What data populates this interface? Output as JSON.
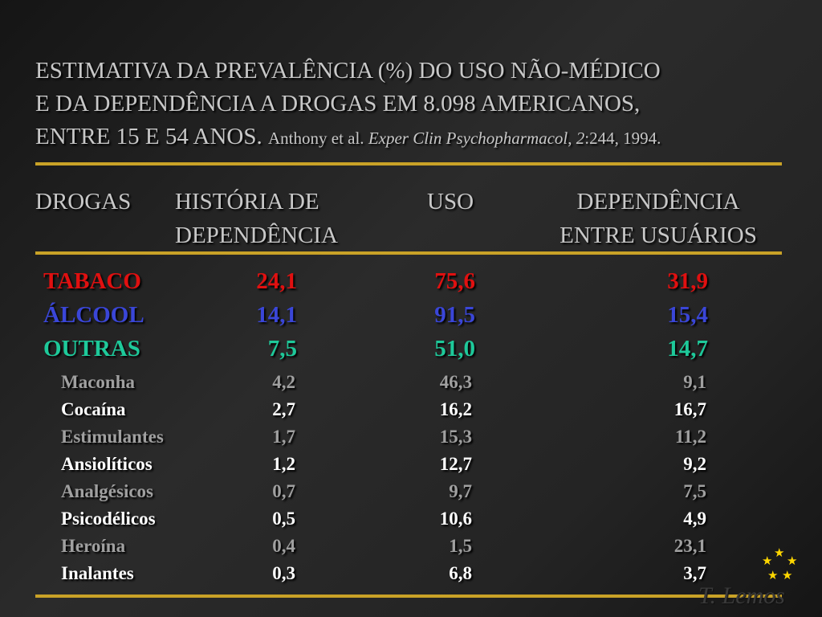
{
  "title": {
    "line1": "ESTIMATIVA DA PREVALÊNCIA (%) DO USO NÃO-MÉDICO",
    "line2": "E DA DEPENDÊNCIA A DROGAS EM 8.098 AMERICANOS,",
    "line3": "ENTRE 15 E 54 ANOS.",
    "citation_authors": "Anthony et al.",
    "citation_journal": "Exper Clin Psychopharmacol",
    "citation_volume": "2",
    "citation_pages": ":244, 1994."
  },
  "headers": {
    "drugs": "DROGAS",
    "history_l1": "HISTÓRIA DE",
    "history_l2": "DEPENDÊNCIA",
    "use": "USO",
    "dep_l1": "DEPENDÊNCIA",
    "dep_l2": "ENTRE USUÁRIOS"
  },
  "main_rows": [
    {
      "name": "TABACO",
      "history": "24,1",
      "use": "75,6",
      "dependence": "31,9",
      "color": "#e01010"
    },
    {
      "name": "ÁLCOOL",
      "history": "14,1",
      "use": "91,5",
      "dependence": "15,4",
      "color": "#3a46d8"
    },
    {
      "name": "OUTRAS",
      "history": "7,5",
      "use": "51,0",
      "dependence": "14,7",
      "color": "#1ec99a"
    }
  ],
  "sub_rows": [
    {
      "name": "Maconha",
      "history": "4,2",
      "use": "46,3",
      "dependence": "9,1",
      "color": "#a0a0a0"
    },
    {
      "name": "Cocaína",
      "history": "2,7",
      "use": "16,2",
      "dependence": "16,7",
      "color": "#ffffff"
    },
    {
      "name": "Estimulantes",
      "history": "1,7",
      "use": "15,3",
      "dependence": "11,2",
      "color": "#a0a0a0"
    },
    {
      "name": "Ansiolíticos",
      "history": "1,2",
      "use": "12,7",
      "dependence": "9,2",
      "color": "#ffffff"
    },
    {
      "name": "Analgésicos",
      "history": "0,7",
      "use": "9,7",
      "dependence": "7,5",
      "color": "#a0a0a0"
    },
    {
      "name": "Psicodélicos",
      "history": "0,5",
      "use": "10,6",
      "dependence": "4,9",
      "color": "#ffffff"
    },
    {
      "name": "Heroína",
      "history": "0,4",
      "use": "1,5",
      "dependence": "23,1",
      "color": "#a0a0a0"
    },
    {
      "name": "Inalantes",
      "history": "0,3",
      "use": "6,8",
      "dependence": "3,7",
      "color": "#ffffff"
    }
  ],
  "colors": {
    "rule": "#c9a227",
    "text": "#c8c8c8",
    "stars": "#ffd700"
  },
  "author": "T. Lemos"
}
